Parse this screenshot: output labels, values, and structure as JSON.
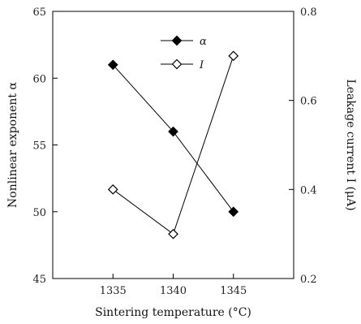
{
  "chart_data": {
    "type": "line",
    "x": [
      1335,
      1340,
      1345
    ],
    "xlabel": "Sintering temperature (°C)",
    "xticks": [
      "1335",
      "1340",
      "1345"
    ],
    "xlim": [
      1330,
      1350
    ],
    "ylabel": "Nonlinear exponent α",
    "ylim": [
      45,
      65
    ],
    "yticks": [
      "45",
      "50",
      "55",
      "60",
      "65"
    ],
    "y2label": "Leakage current I (μA)",
    "y2lim": [
      0.2,
      0.8
    ],
    "y2ticks": [
      "0.2",
      "0.4",
      "0.6",
      "0.8"
    ],
    "legend_position": "top-center",
    "series": [
      {
        "name": "α",
        "axis": "left",
        "marker": "filled-diamond",
        "values": [
          61,
          56,
          50
        ]
      },
      {
        "name": "I",
        "axis": "right",
        "marker": "open-diamond",
        "values": [
          0.4,
          0.3,
          0.7
        ]
      }
    ]
  }
}
